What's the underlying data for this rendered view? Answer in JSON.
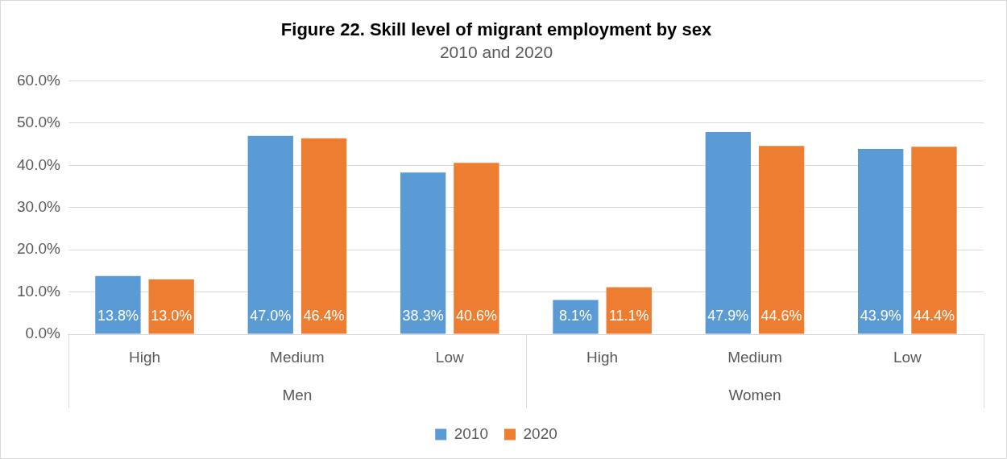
{
  "chart_data": {
    "type": "bar",
    "title": "Figure 22. Skill level of migrant employment by sex",
    "subtitle": "2010 and 2020",
    "categories": [
      "High",
      "Medium",
      "Low",
      "High",
      "Medium",
      "Low"
    ],
    "annotations": [
      "Men",
      "Women"
    ],
    "series": [
      {
        "name": "2010",
        "color": "#5b9bd5",
        "values": [
          13.8,
          47.0,
          38.3,
          8.1,
          47.9,
          43.9
        ],
        "value_labels": [
          "13.8%",
          "47.0%",
          "38.3%",
          "8.1%",
          "47.9%",
          "43.9%"
        ]
      },
      {
        "name": "2020",
        "color": "#ed7d31",
        "values": [
          13.0,
          46.4,
          40.6,
          11.1,
          44.6,
          44.4
        ],
        "value_labels": [
          "13.0%",
          "46.4%",
          "40.6%",
          "11.1%",
          "44.6%",
          "44.4%"
        ]
      }
    ],
    "ylim": [
      0,
      60
    ],
    "yticks": [
      {
        "value": 0,
        "label": "0.0%"
      },
      {
        "value": 10,
        "label": "10.0%"
      },
      {
        "value": 20,
        "label": "20.0%"
      },
      {
        "value": 30,
        "label": "30.0%"
      },
      {
        "value": 40,
        "label": "40.0%"
      },
      {
        "value": 50,
        "label": "50.0%"
      },
      {
        "value": 60,
        "label": "60.0%"
      }
    ],
    "grid": "y",
    "legend": "bottom"
  }
}
